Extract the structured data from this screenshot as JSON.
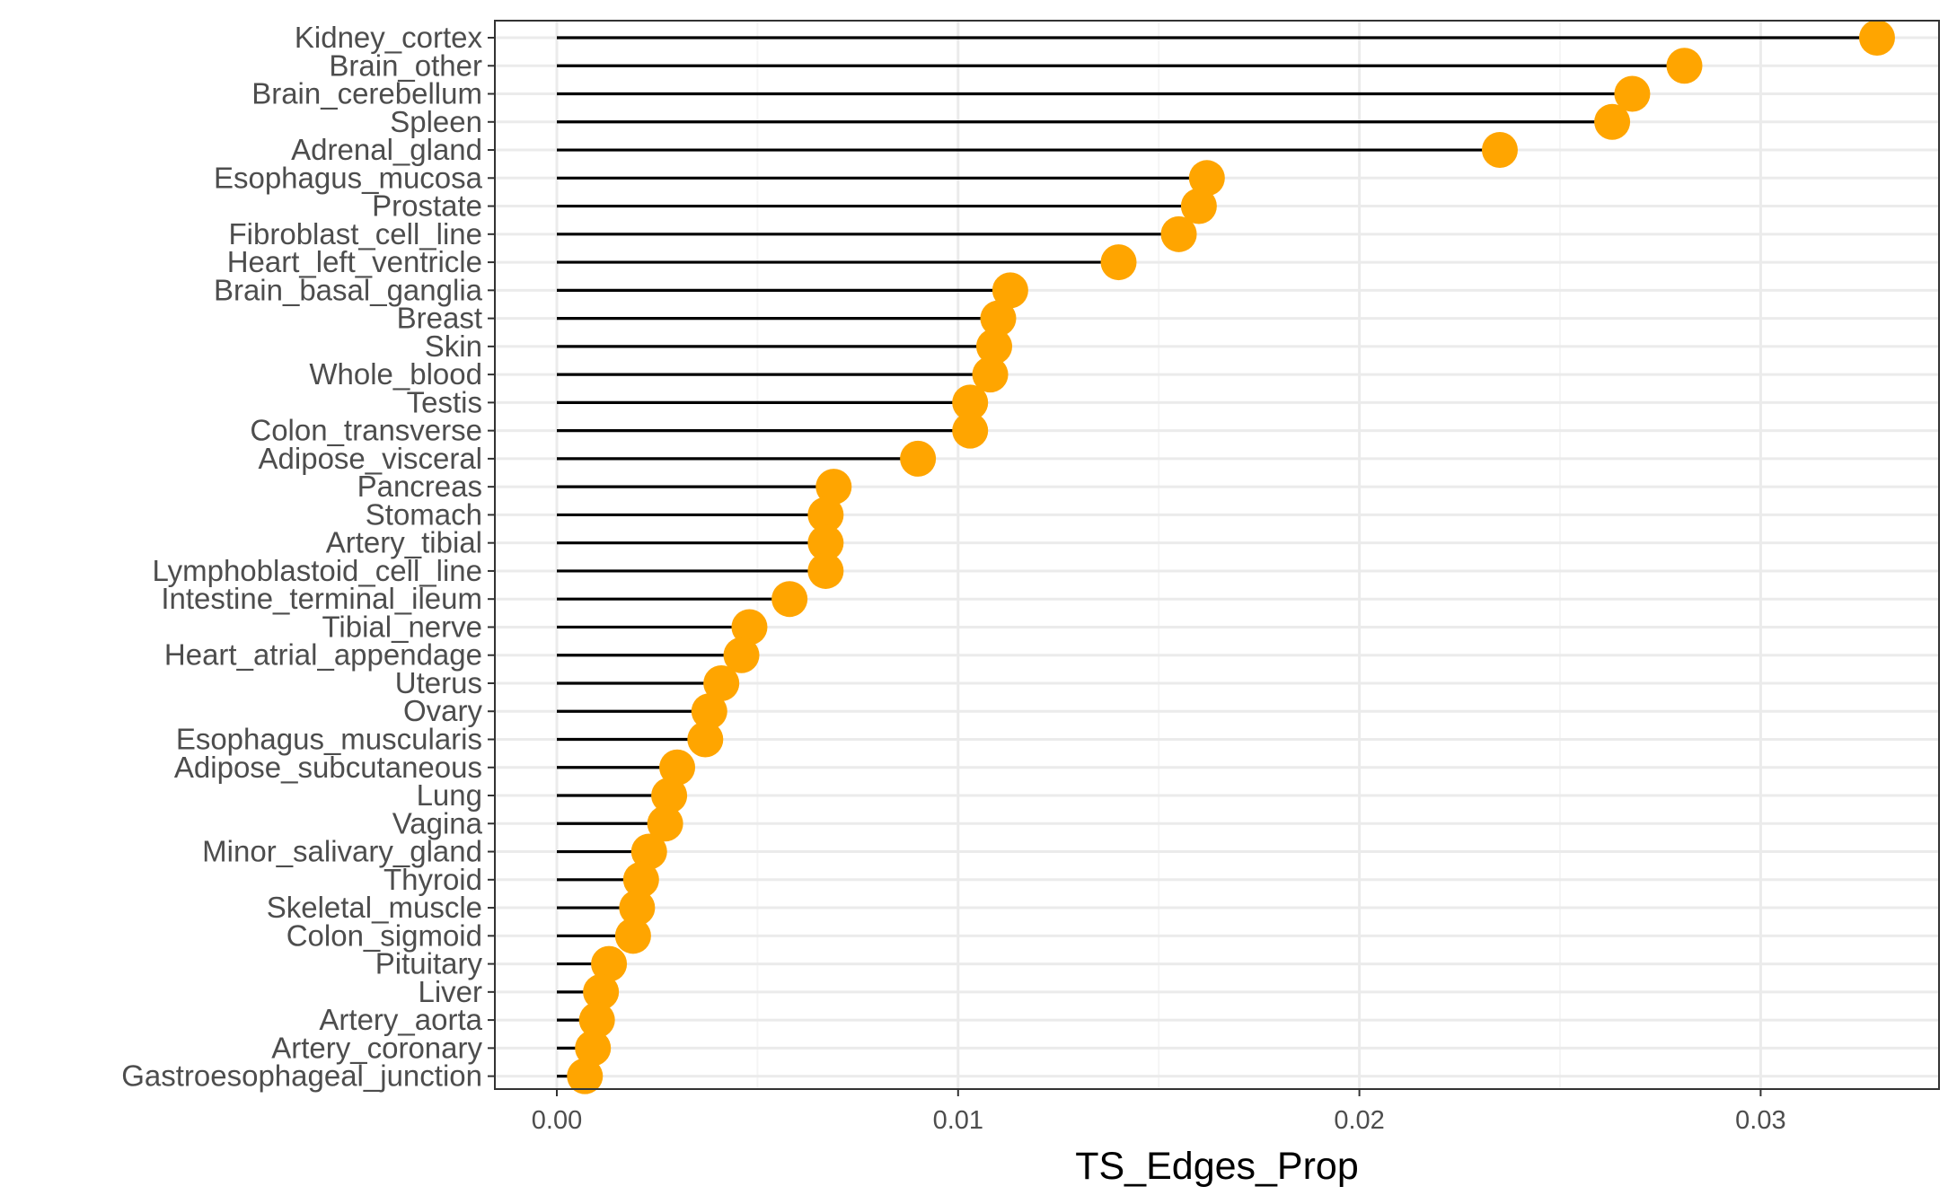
{
  "chart_data": {
    "type": "lollipop",
    "title": "",
    "xlabel": "TS_Edges_Prop",
    "ylabel": "",
    "xlim": [
      -0.0016,
      0.0342
    ],
    "x_ticks": [
      0.0,
      0.01,
      0.02,
      0.03
    ],
    "x_tick_labels": [
      "0.00",
      "0.01",
      "0.02",
      "0.03"
    ],
    "grid": true,
    "theme": "bw",
    "colors": {
      "point": "#FFA500",
      "segment": "#000000",
      "grid_major": "#EBEBEB",
      "grid_minor": "#F5F5F5",
      "panel_border": "#333333",
      "tick_text": "#4D4D4D"
    },
    "categories": [
      "Kidney_cortex",
      "Brain_other",
      "Brain_cerebellum",
      "Spleen",
      "Adrenal_gland",
      "Esophagus_mucosa",
      "Prostate",
      "Fibroblast_cell_line",
      "Heart_left_ventricle",
      "Brain_basal_ganglia",
      "Breast",
      "Skin",
      "Whole_blood",
      "Testis",
      "Colon_transverse",
      "Adipose_visceral",
      "Pancreas",
      "Stomach",
      "Artery_tibial",
      "Lymphoblastoid_cell_line",
      "Intestine_terminal_ileum",
      "Tibial_nerve",
      "Heart_atrial_appendage",
      "Uterus",
      "Ovary",
      "Esophagus_muscularis",
      "Adipose_subcutaneous",
      "Lung",
      "Vagina",
      "Minor_salivary_gland",
      "Thyroid",
      "Skeletal_muscle",
      "Colon_sigmoid",
      "Pituitary",
      "Liver",
      "Artery_aorta",
      "Artery_coronary",
      "Gastroesophageal_junction"
    ],
    "values": [
      0.0329,
      0.0281,
      0.0268,
      0.0263,
      0.0235,
      0.0162,
      0.016,
      0.0155,
      0.014,
      0.0113,
      0.011,
      0.0109,
      0.0108,
      0.0103,
      0.0103,
      0.009,
      0.0069,
      0.0067,
      0.0067,
      0.0067,
      0.0058,
      0.0048,
      0.0046,
      0.0041,
      0.0038,
      0.0037,
      0.003,
      0.0028,
      0.0027,
      0.0023,
      0.0021,
      0.002,
      0.0019,
      0.0013,
      0.0011,
      0.001,
      0.0009,
      0.0007
    ]
  }
}
